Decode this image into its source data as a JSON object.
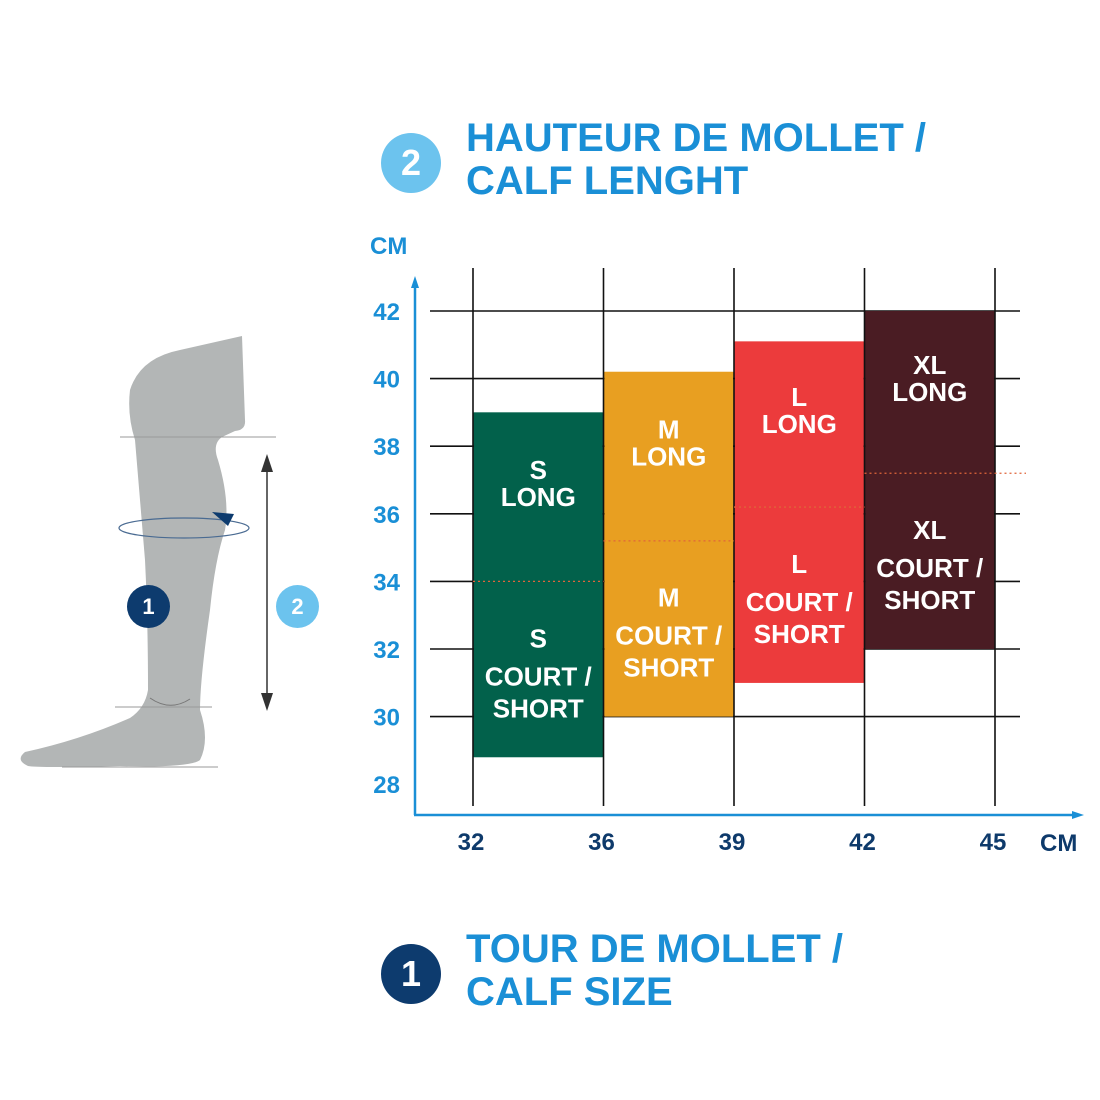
{
  "colors": {
    "title": "#1a8fd6",
    "axis": "#1a8fd6",
    "xtick": "#0e3a6b",
    "badge1": "#0d3b6e",
    "badge2": "#6cc3ee",
    "split_line": "#e0643a",
    "leg": "#b3b6b6"
  },
  "header": {
    "badge": "2",
    "line1": "HAUTEUR DE MOLLET /",
    "line2": "CALF LENGHT"
  },
  "footer": {
    "badge": "1",
    "line1": "TOUR DE MOLLET /",
    "line2": "CALF SIZE"
  },
  "illustration": {
    "badge1": "1",
    "badge2": "2"
  },
  "chart_data": {
    "type": "bar",
    "xlabel": "CM",
    "ylabel": "CM",
    "x_ticks": [
      "32",
      "36",
      "39",
      "42",
      "45"
    ],
    "y_ticks": [
      28,
      30,
      32,
      34,
      36,
      38,
      40,
      42
    ],
    "ylim": [
      27,
      43.5
    ],
    "grid": true,
    "bars": [
      {
        "size": "S",
        "x": [
          "32",
          "36"
        ],
        "y_min": 28.8,
        "y_max": 39.0,
        "split": 34.0,
        "color": "#02614b",
        "long_label": [
          "S",
          "LONG"
        ],
        "short_label": [
          "S",
          "COURT /",
          "SHORT"
        ]
      },
      {
        "size": "M",
        "x": [
          "36",
          "39"
        ],
        "y_min": 30.0,
        "y_max": 40.2,
        "split": 35.2,
        "color": "#e89f21",
        "long_label": [
          "M",
          "LONG"
        ],
        "short_label": [
          "M",
          "COURT /",
          "SHORT"
        ]
      },
      {
        "size": "L",
        "x": [
          "39",
          "42"
        ],
        "y_min": 31.0,
        "y_max": 41.1,
        "split": 36.2,
        "color": "#ec3b3c",
        "long_label": [
          "L",
          "LONG"
        ],
        "short_label": [
          "L",
          "COURT /",
          "SHORT"
        ]
      },
      {
        "size": "XL",
        "x": [
          "42",
          "45"
        ],
        "y_min": 32.0,
        "y_max": 42.0,
        "split": 37.2,
        "color": "#4a1c23",
        "long_label": [
          "XL",
          "LONG"
        ],
        "short_label": [
          "XL",
          "COURT /",
          "SHORT"
        ]
      }
    ]
  }
}
